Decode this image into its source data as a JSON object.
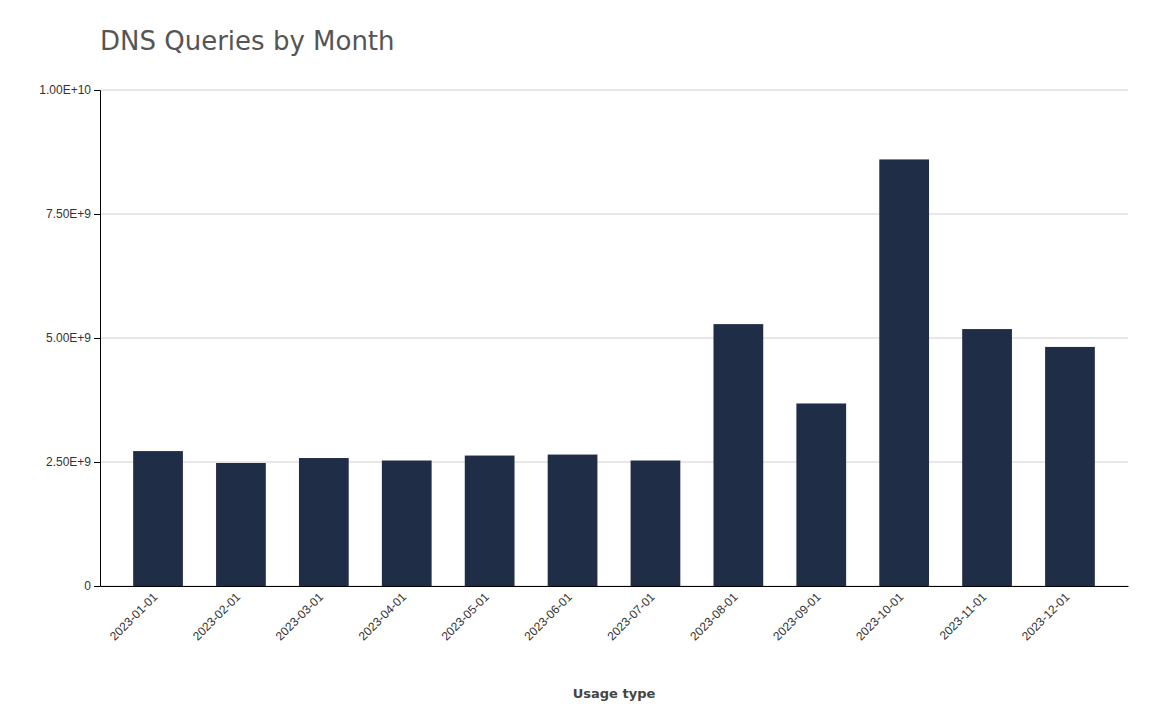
{
  "chart_data": {
    "type": "bar",
    "title": "DNS Queries by Month",
    "xlabel": "Usage type",
    "categories": [
      "2023-01-01",
      "2023-02-01",
      "2023-03-01",
      "2023-04-01",
      "2023-05-01",
      "2023-06-01",
      "2023-07-01",
      "2023-08-01",
      "2023-09-01",
      "2023-10-01",
      "2023-11-01",
      "2023-12-01"
    ],
    "values": [
      2720000000,
      2480000000,
      2580000000,
      2530000000,
      2630000000,
      2650000000,
      2530000000,
      5280000000,
      3680000000,
      8600000000,
      5180000000,
      4820000000
    ],
    "color": "#1f2d47",
    "ylim": [
      0,
      10000000000
    ],
    "yticks": [
      0,
      {
        "value": 2500000000,
        "label": "2.50E+9"
      },
      {
        "value": 5000000000,
        "label": "5.00E+9"
      },
      {
        "value": 7500000000,
        "label": "7.50E+9"
      },
      {
        "value": 10000000000,
        "label": "1.00E+10"
      }
    ],
    "grid": true
  }
}
